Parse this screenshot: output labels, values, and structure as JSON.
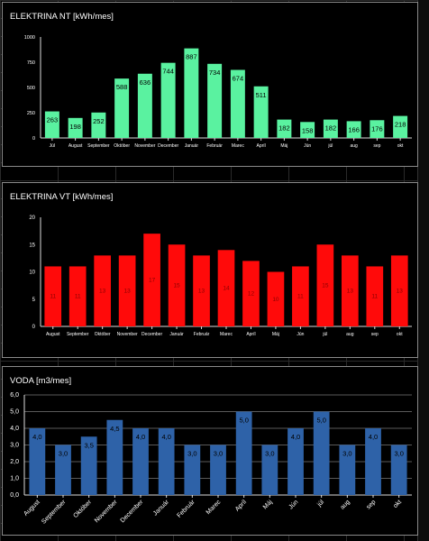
{
  "chart_data": [
    {
      "type": "bar",
      "title": "ELEKTRINA NT [kWh/mes]",
      "categories": [
        "Júl",
        "August",
        "September",
        "Október",
        "November",
        "December",
        "Január",
        "Február",
        "Marec",
        "Apríl",
        "Máj",
        "Jún",
        "júl",
        "aug",
        "sep",
        "okt"
      ],
      "values": [
        263,
        198,
        252,
        588,
        636,
        744,
        887,
        734,
        674,
        511,
        182,
        158,
        182,
        166,
        176,
        218
      ],
      "value_labels": [
        "263",
        "198",
        "252",
        "588",
        "636",
        "744",
        "887",
        "734",
        "674",
        "511",
        "182",
        "158",
        "182",
        "166",
        "176",
        "218"
      ],
      "ylim": [
        0,
        1000
      ],
      "yticks": [
        "0",
        "250",
        "500",
        "750",
        "1000"
      ],
      "grid": false,
      "bar_color": "#5af2a0"
    },
    {
      "type": "bar",
      "title": "ELEKTRINA VT [kWh/mes]",
      "categories": [
        "August",
        "September",
        "Október",
        "November",
        "December",
        "Január",
        "Február",
        "Marec",
        "Apríl",
        "Máj",
        "Jún",
        "júl",
        "aug",
        "sep",
        "okt"
      ],
      "values": [
        11,
        11,
        13,
        13,
        17,
        15,
        13,
        14,
        12,
        10,
        11,
        15,
        13,
        11,
        13
      ],
      "value_labels": [
        "11",
        "11",
        "13",
        "13",
        "17",
        "15",
        "13",
        "14",
        "12",
        "10",
        "11",
        "15",
        "13",
        "11",
        "13"
      ],
      "ylim": [
        0,
        20
      ],
      "yticks": [
        "0",
        "5",
        "10",
        "15",
        "20"
      ],
      "grid": false,
      "bar_color": "#ff0a0a"
    },
    {
      "type": "bar",
      "title": "VODA [m3/mes]",
      "categories": [
        "August",
        "September",
        "Október",
        "November",
        "December",
        "Január",
        "Február",
        "Marec",
        "Apríl",
        "Máj",
        "Jún",
        "júl",
        "aug",
        "sep",
        "okt"
      ],
      "values": [
        4.0,
        3.0,
        3.5,
        4.5,
        4.0,
        4.0,
        3.0,
        3.0,
        5.0,
        3.0,
        4.0,
        5.0,
        3.0,
        4.0,
        3.0
      ],
      "value_labels": [
        "4,0",
        "3,0",
        "3,5",
        "4,5",
        "4,0",
        "4,0",
        "3,0",
        "3,0",
        "5,0",
        "3,0",
        "4,0",
        "5,0",
        "3,0",
        "4,0",
        "3,0"
      ],
      "ylim": [
        0,
        6
      ],
      "yticks": [
        "0,0",
        "1,0",
        "2,0",
        "3,0",
        "4,0",
        "5,0",
        "6,0"
      ],
      "grid": true,
      "bar_color": "#2e62a8"
    }
  ]
}
